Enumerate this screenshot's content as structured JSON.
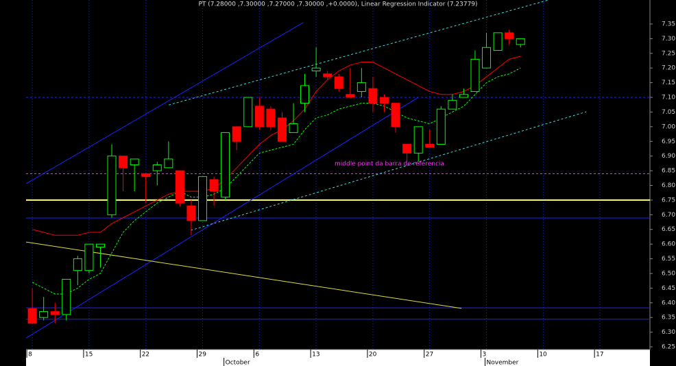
{
  "chart_data": {
    "type": "candlestick",
    "title": "PT (7.28000 ,7.30000 ,7.27000 ,7.30000 ,+0.0000), Linear Regression Indicator (7.23779)",
    "annotation": "middle point da barra de referencia",
    "annotation_color": "#ff33ff",
    "up_color": "#00ff00",
    "down_color": "#ff0000",
    "x": [
      0,
      1,
      2,
      3,
      4,
      5,
      6,
      7,
      8,
      9,
      10,
      11,
      12,
      13,
      14,
      15,
      16,
      17,
      18,
      19,
      20,
      21,
      22,
      23,
      24,
      25,
      26,
      27,
      28,
      29,
      30,
      31,
      32,
      33,
      34,
      35,
      36,
      37,
      38,
      39,
      40,
      41,
      42,
      43
    ],
    "open": [
      6.38,
      6.35,
      6.37,
      6.36,
      6.51,
      6.51,
      6.59,
      6.7,
      6.9,
      6.87,
      6.84,
      6.85,
      6.86,
      6.85,
      6.73,
      6.68,
      6.82,
      6.76,
      7.0,
      7.0,
      7.07,
      7.06,
      7.03,
      6.98,
      7.08,
      7.19,
      7.18,
      7.17,
      7.11,
      7.12,
      7.13,
      7.1,
      7.08,
      6.94,
      6.91,
      6.94,
      6.94,
      7.06,
      7.1,
      7.12,
      7.2,
      7.26,
      7.32,
      7.28
    ],
    "high": [
      6.45,
      6.42,
      6.4,
      6.48,
      6.56,
      6.6,
      6.6,
      6.94,
      6.9,
      6.89,
      6.84,
      6.88,
      6.95,
      6.85,
      6.75,
      6.83,
      6.83,
      6.98,
      7.0,
      7.1,
      7.1,
      7.07,
      7.05,
      7.08,
      7.18,
      7.27,
      7.19,
      7.18,
      7.2,
      7.2,
      7.17,
      7.11,
      7.08,
      6.94,
      7.0,
      6.99,
      7.07,
      7.11,
      7.13,
      7.26,
      7.32,
      7.32,
      7.33,
      7.3
    ],
    "low": [
      6.33,
      6.34,
      6.33,
      6.34,
      6.46,
      6.5,
      6.52,
      6.69,
      6.78,
      6.78,
      6.74,
      6.8,
      6.86,
      6.73,
      6.63,
      6.68,
      6.73,
      6.75,
      6.92,
      7.0,
      6.99,
      6.99,
      6.95,
      6.98,
      7.05,
      7.17,
      7.16,
      7.12,
      7.1,
      7.1,
      7.05,
      7.05,
      6.98,
      6.88,
      6.88,
      6.93,
      6.94,
      7.06,
      7.1,
      7.12,
      7.2,
      7.26,
      7.28,
      7.27
    ],
    "close": [
      6.33,
      6.37,
      6.36,
      6.48,
      6.55,
      6.6,
      6.6,
      6.9,
      6.86,
      6.89,
      6.83,
      6.87,
      6.89,
      6.74,
      6.68,
      6.83,
      6.78,
      6.98,
      6.95,
      7.1,
      7.0,
      7.0,
      6.95,
      7.01,
      7.14,
      7.2,
      7.17,
      7.13,
      7.1,
      7.15,
      7.08,
      7.08,
      7.0,
      6.91,
      7.0,
      6.93,
      7.06,
      7.09,
      7.11,
      7.23,
      7.27,
      7.32,
      7.3,
      7.3
    ],
    "series": [
      {
        "color": "#ff0000",
        "dash": false,
        "values": [
          6.65,
          6.64,
          6.63,
          6.63,
          6.63,
          6.64,
          6.64,
          6.67,
          6.69,
          6.71,
          6.73,
          6.75,
          6.77,
          6.78,
          6.78,
          6.78,
          6.79,
          6.82,
          6.86,
          6.9,
          6.94,
          6.97,
          6.99,
          7.02,
          7.06,
          7.12,
          7.16,
          7.19,
          7.21,
          7.22,
          7.22,
          7.2,
          7.18,
          7.16,
          7.14,
          7.12,
          7.11,
          7.11,
          7.12,
          7.14,
          7.17,
          7.2,
          7.23,
          7.24
        ]
      },
      {
        "color": "#00ff00",
        "dash": true,
        "values": [
          6.47,
          6.45,
          6.43,
          6.43,
          6.45,
          6.48,
          6.5,
          6.57,
          6.64,
          6.68,
          6.71,
          6.74,
          6.76,
          6.78,
          6.76,
          6.76,
          6.77,
          6.79,
          6.83,
          6.87,
          6.91,
          6.92,
          6.93,
          6.94,
          6.99,
          7.03,
          7.04,
          7.06,
          7.07,
          7.08,
          7.08,
          7.07,
          7.05,
          7.03,
          7.02,
          7.01,
          7.03,
          7.05,
          7.07,
          7.11,
          7.15,
          7.17,
          7.18,
          7.2
        ]
      }
    ],
    "lines": [
      {
        "color": "#2020ff",
        "dash": false,
        "width": 1,
        "x": [
          -0.54,
          23.87
        ],
        "values": [
          6.806,
          7.355
        ]
      },
      {
        "color": "#2020ff",
        "dash": false,
        "width": 1,
        "x": [
          -0.54,
          34.0
        ],
        "values": [
          6.28,
          7.1
        ]
      },
      {
        "color": "#40e0e0",
        "dash": true,
        "width": 1,
        "x": [
          12.02,
          45.5
        ],
        "values": [
          7.074,
          7.432
        ]
      },
      {
        "color": "#40e0e0",
        "dash": true,
        "width": 1,
        "x": [
          13.96,
          48.8
        ],
        "values": [
          6.647,
          7.051
        ]
      },
      {
        "color": "#e0e040",
        "dash": false,
        "width": 1,
        "x": [
          -0.54,
          37.8
        ],
        "values": [
          6.607,
          6.381
        ]
      }
    ],
    "hlines": [
      {
        "value": 6.75,
        "color": "#ffff66",
        "dash": false,
        "width": 2
      },
      {
        "value": 6.689,
        "color": "#2020ff",
        "dash": false,
        "width": 1
      },
      {
        "value": 6.383,
        "color": "#2020ff",
        "dash": false,
        "width": 1
      },
      {
        "value": 6.344,
        "color": "#2020ff",
        "dash": false,
        "width": 1
      },
      {
        "value": 7.1,
        "color": "#2020ff",
        "dash": true,
        "width": 1
      },
      {
        "value": 6.84,
        "color": "#ff33ff",
        "dash": true,
        "width": 1
      }
    ],
    "xlim": [
      -0.55,
      54.4
    ],
    "ylim": [
      6.2407,
      7.4317
    ],
    "xticks": [
      {
        "value": 0,
        "label": "8"
      },
      {
        "value": 5,
        "label": "15"
      },
      {
        "value": 10,
        "label": "22"
      },
      {
        "value": 15,
        "label": "29"
      },
      {
        "value": 20,
        "label": "6"
      },
      {
        "value": 25,
        "label": "13"
      },
      {
        "value": 30,
        "label": "20"
      },
      {
        "value": 35,
        "label": "27"
      },
      {
        "value": 40,
        "label": "3"
      },
      {
        "value": 45,
        "label": "10"
      },
      {
        "value": 50,
        "label": "17"
      }
    ],
    "month_labels": [
      {
        "value": 17,
        "label": "October"
      },
      {
        "value": 40,
        "label": "November"
      }
    ],
    "yticks": [
      6.25,
      {
        "value": 6.3,
        "label": "6.30"
      },
      6.35,
      {
        "value": 6.4,
        "label": "6.40"
      },
      6.45,
      {
        "value": 6.5,
        "label": "6.50"
      },
      6.55,
      {
        "value": 6.6,
        "label": "6.60"
      },
      6.65,
      {
        "value": 6.7,
        "label": "6.70"
      },
      6.75,
      {
        "value": 6.8,
        "label": "6.80"
      },
      6.85,
      {
        "value": 6.9,
        "label": "6.90"
      },
      6.95,
      {
        "value": 7,
        "label": "7.00"
      },
      7.05,
      {
        "value": 7.1,
        "label": "7.10"
      },
      7.15,
      {
        "value": 7.2,
        "label": "7.20"
      },
      7.25,
      {
        "value": 7.3,
        "label": "7.30"
      },
      7.35
    ],
    "grid": true
  }
}
